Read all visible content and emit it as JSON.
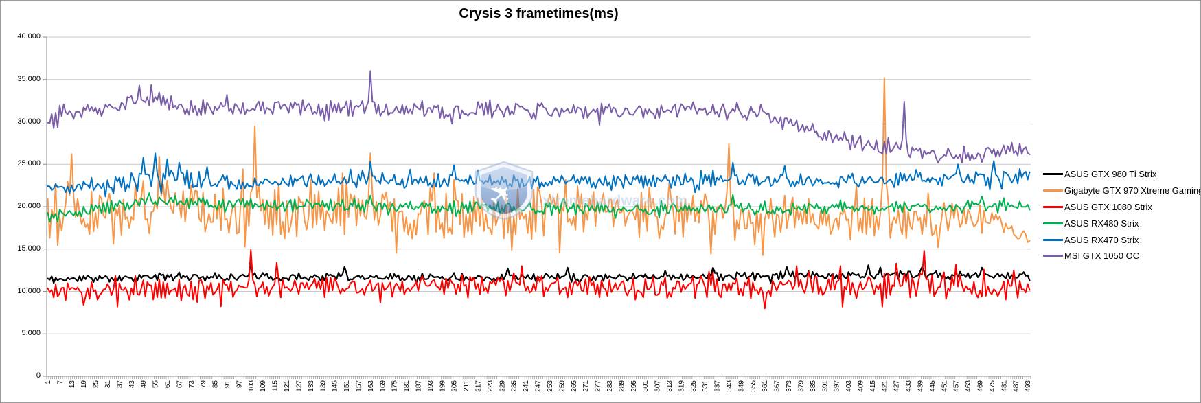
{
  "chart": {
    "title": "Crysis 3 frametimes(ms)"
  },
  "watermark": {
    "text": "xtremehardware.com"
  },
  "colors": {
    "grid": "#c9c9c9",
    "axis": "#8e8e8e",
    "border": "#9d9d9d",
    "text": "#000000",
    "watermark_text": "#b6cae3"
  },
  "chart_data": {
    "type": "line",
    "title": "Crysis 3 frametimes(ms)",
    "xlabel": "",
    "ylabel": "",
    "grid": "horizontal",
    "legend_position": "right",
    "x_axis": {
      "min": 1,
      "max": 494,
      "tick_label_start": 1,
      "tick_label_step": 6,
      "tick_label_end": 493
    },
    "y_axis": {
      "min": 0,
      "max": 40,
      "step": 5,
      "tick_labels": [
        "0",
        "5.000",
        "10.000",
        "15.000",
        "20.000",
        "25.000",
        "30.000",
        "35.000",
        "40.000"
      ]
    },
    "series": [
      {
        "id": "gtx980ti",
        "name": "ASUS GTX 980 Ti Strix",
        "color": "#000000",
        "width": 2.2,
        "seed": 11,
        "keys": [
          [
            1,
            11.4
          ],
          [
            50,
            11.7
          ],
          [
            150,
            11.7
          ],
          [
            250,
            11.7
          ],
          [
            350,
            11.8
          ],
          [
            420,
            11.9
          ],
          [
            494,
            11.8
          ]
        ],
        "amp": [
          [
            1,
            0.38
          ],
          [
            494,
            0.42
          ]
        ],
        "tail_p": 0.05,
        "tail_mult": 1.8,
        "clamp": [
          10.9,
          12.9
        ],
        "spikes": [
          [
            103,
            13.4
          ],
          [
            150,
            12.9
          ],
          [
            232,
            12.7
          ],
          [
            262,
            12.8
          ],
          [
            335,
            12.8
          ],
          [
            372,
            12.9
          ],
          [
            413,
            13.1
          ],
          [
            440,
            12.9
          ],
          [
            470,
            12.8
          ]
        ]
      },
      {
        "id": "gtx970",
        "name": "Gigabyte GTX 970 Xtreme Gaming",
        "color": "#F79646",
        "width": 2,
        "seed": 22,
        "keys": [
          [
            1,
            19.6
          ],
          [
            60,
            19.9
          ],
          [
            120,
            19.4
          ],
          [
            200,
            19.2
          ],
          [
            300,
            19.2
          ],
          [
            370,
            19.0
          ],
          [
            392,
            18.0
          ],
          [
            408,
            18.4
          ],
          [
            440,
            18.6
          ],
          [
            478,
            18.0
          ],
          [
            494,
            16.0
          ]
        ],
        "amp": [
          [
            1,
            2.5
          ],
          [
            200,
            2.4
          ],
          [
            370,
            2.4
          ],
          [
            392,
            0.9
          ],
          [
            408,
            2.3
          ],
          [
            470,
            1.6
          ],
          [
            485,
            0.9
          ],
          [
            494,
            0.7
          ]
        ],
        "tail_p": 0.22,
        "tail_mult": 1.55,
        "clamp": [
          13.8,
          26.6
        ],
        "spikes": [
          [
            13,
            26.2
          ],
          [
            57,
            25.9
          ],
          [
            105,
            29.5
          ],
          [
            163,
            26.3
          ],
          [
            343,
            27.4
          ],
          [
            421,
            35.2
          ]
        ]
      },
      {
        "id": "gtx1080",
        "name": "ASUS GTX 1080 Strix",
        "color": "#FF0000",
        "width": 2,
        "seed": 33,
        "keys": [
          [
            1,
            10.0
          ],
          [
            60,
            10.2
          ],
          [
            150,
            10.5
          ],
          [
            250,
            10.6
          ],
          [
            350,
            10.4
          ],
          [
            430,
            10.8
          ],
          [
            494,
            10.1
          ]
        ],
        "amp": [
          [
            1,
            0.95
          ],
          [
            300,
            1.0
          ],
          [
            420,
            1.3
          ],
          [
            494,
            0.9
          ]
        ],
        "tail_p": 0.12,
        "tail_mult": 1.7,
        "clamp": [
          8.2,
          13.0
        ],
        "spikes": [
          [
            19,
            8.4
          ],
          [
            103,
            14.9
          ],
          [
            116,
            13.4
          ],
          [
            239,
            13.0
          ],
          [
            361,
            8.0
          ],
          [
            427,
            13.3
          ],
          [
            441,
            14.8
          ],
          [
            457,
            13.2
          ],
          [
            486,
            12.5
          ]
        ]
      },
      {
        "id": "rx480",
        "name": "ASUS RX480 Strix",
        "color": "#00B050",
        "width": 2,
        "seed": 44,
        "keys": [
          [
            1,
            18.7
          ],
          [
            30,
            19.9
          ],
          [
            55,
            20.6
          ],
          [
            90,
            20.3
          ],
          [
            150,
            20.1
          ],
          [
            250,
            19.8
          ],
          [
            350,
            19.7
          ],
          [
            430,
            19.9
          ],
          [
            494,
            20.0
          ]
        ],
        "amp": [
          [
            1,
            0.6
          ],
          [
            494,
            0.55
          ]
        ],
        "tail_p": 0.07,
        "tail_mult": 1.6,
        "clamp": [
          18.2,
          21.3
        ],
        "spikes": [
          [
            52,
            21.6
          ],
          [
            163,
            21.3
          ],
          [
            260,
            21.0
          ],
          [
            345,
            21.4
          ],
          [
            470,
            21.2
          ]
        ]
      },
      {
        "id": "rx470",
        "name": "ASUS RX470 Strix",
        "color": "#0070C0",
        "width": 2,
        "seed": 55,
        "keys": [
          [
            1,
            22.3
          ],
          [
            40,
            22.7
          ],
          [
            52,
            23.4
          ],
          [
            68,
            23.2
          ],
          [
            90,
            22.8
          ],
          [
            150,
            23.1
          ],
          [
            250,
            22.9
          ],
          [
            330,
            23.0
          ],
          [
            420,
            23.1
          ],
          [
            480,
            23.4
          ],
          [
            494,
            23.7
          ]
        ],
        "amp": [
          [
            1,
            0.65
          ],
          [
            45,
            1.0
          ],
          [
            75,
            1.0
          ],
          [
            95,
            0.65
          ],
          [
            494,
            0.7
          ]
        ],
        "tail_p": 0.1,
        "tail_mult": 1.6,
        "clamp": [
          21.2,
          25.0
        ],
        "spikes": [
          [
            49,
            25.8
          ],
          [
            55,
            26.3
          ],
          [
            61,
            25.6
          ],
          [
            67,
            25.2
          ],
          [
            163,
            25.3
          ],
          [
            205,
            24.9
          ],
          [
            345,
            25.2
          ],
          [
            371,
            24.8
          ],
          [
            458,
            25.0
          ],
          [
            476,
            25.4
          ]
        ]
      },
      {
        "id": "gtx1050",
        "name": "MSI GTX 1050 OC",
        "color": "#7A5DA8",
        "width": 2,
        "seed": 66,
        "keys": [
          [
            1,
            30.4
          ],
          [
            8,
            31.1
          ],
          [
            30,
            31.6
          ],
          [
            44,
            32.6
          ],
          [
            56,
            32.9
          ],
          [
            66,
            31.7
          ],
          [
            110,
            31.8
          ],
          [
            200,
            31.4
          ],
          [
            280,
            31.2
          ],
          [
            340,
            31.6
          ],
          [
            358,
            31.0
          ],
          [
            372,
            30.0
          ],
          [
            388,
            28.7
          ],
          [
            404,
            27.8
          ],
          [
            420,
            26.8
          ],
          [
            436,
            26.3
          ],
          [
            452,
            26.1
          ],
          [
            470,
            26.2
          ],
          [
            494,
            26.8
          ]
        ],
        "amp": [
          [
            1,
            0.75
          ],
          [
            340,
            0.8
          ],
          [
            370,
            0.7
          ],
          [
            420,
            0.75
          ],
          [
            494,
            0.8
          ]
        ],
        "tail_p": 0.08,
        "tail_mult": 1.6,
        "clamp": [
          25.2,
          34.6
        ],
        "spikes": [
          [
            47,
            34.3
          ],
          [
            163,
            36.0
          ],
          [
            431,
            32.4
          ]
        ]
      }
    ]
  }
}
